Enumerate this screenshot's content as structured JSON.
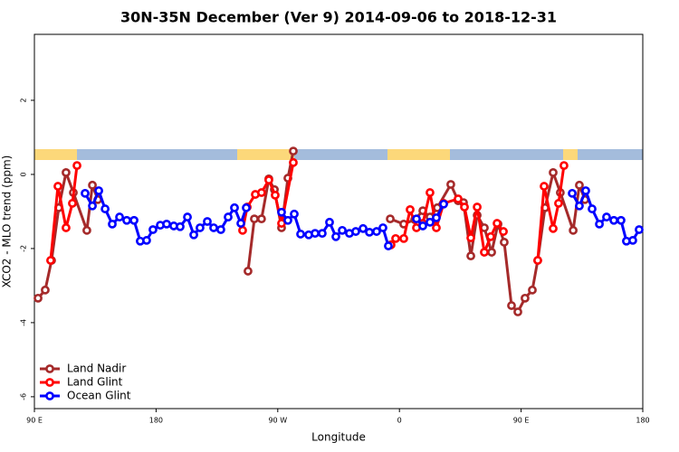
{
  "chart_data": {
    "type": "line",
    "title": "30N-35N December (Ver 9)   2014-09-06 to 2018-12-31",
    "xlabel": "Longitude",
    "ylabel": "XCO2 - MLO trend (ppm)",
    "xlim": [
      90,
      540
    ],
    "ylim": [
      -6.32,
      3.78
    ],
    "xticks": [
      {
        "value": 90,
        "label": "90 E"
      },
      180,
      {
        "value": 270,
        "label": "90 W"
      },
      {
        "value": 360,
        "label": "0"
      },
      {
        "value": 450,
        "label": "90 E"
      },
      {
        "value": 540,
        "label": "180"
      }
    ],
    "yticks": [
      -6,
      -4,
      -2,
      0,
      2
    ],
    "legend": "bottomleft",
    "series": [
      {
        "name": "Land Nadir",
        "color": "#a52a2a",
        "x": [
          92.7,
          98,
          102.7,
          108,
          113.4,
          118.8,
          128.8,
          132.9,
          136.9,
          null,
          248,
          252.7,
          258,
          263.4,
          267.5,
          272.8,
          277.5,
          281.5,
          null,
          353.2,
          363.2,
          371.3,
          377.3,
          382.6,
          388,
          398,
          403.4,
          407.4,
          412.8,
          417.5,
          422.8,
          428.2,
          432.9,
          437.5,
          442.9,
          447.6,
          452.9,
          458.3,
          462.3,
          467.7,
          473.7,
          479,
          488.5,
          493.1,
          497.2
        ],
        "values": [
          -3.34,
          -3.12,
          -2.32,
          -0.9,
          0.05,
          -0.49,
          -1.51,
          -0.29,
          -0.68,
          null,
          -2.61,
          -1.2,
          -1.2,
          -0.12,
          -0.41,
          -1.44,
          -0.1,
          0.63,
          null,
          -1.2,
          -1.34,
          -1.22,
          -0.98,
          -1.15,
          -0.9,
          -0.27,
          -0.71,
          -0.76,
          -2.2,
          -1.1,
          -1.44,
          -2.1,
          -1.34,
          -1.83,
          -3.54,
          -3.71,
          -3.34,
          -3.12,
          -2.32,
          -0.9,
          0.05,
          -0.49,
          -1.51,
          -0.29,
          -0.68
        ]
      },
      {
        "name": "Land Glint",
        "color": "#ff0000",
        "x": [
          102,
          107.4,
          113.4,
          118.1,
          121.5,
          null,
          244,
          247.4,
          253.4,
          258,
          263.4,
          268.1,
          272.8,
          281.5,
          null,
          353.8,
          357.2,
          363.2,
          367.9,
          372.6,
          377.3,
          382.6,
          387.3,
          392.7,
          403.4,
          408.1,
          412.8,
          417.5,
          422.8,
          427.5,
          432.2,
          436.9,
          null,
          462.3,
          467,
          473.7,
          477.7,
          481.7
        ],
        "values": [
          -2.32,
          -0.32,
          -1.44,
          -0.78,
          0.24,
          null,
          -1.51,
          -0.88,
          -0.54,
          -0.49,
          -0.15,
          -0.56,
          -1.32,
          0.32,
          null,
          -1.9,
          -1.73,
          -1.73,
          -0.95,
          -1.44,
          -1.32,
          -0.49,
          -1.44,
          -0.78,
          -0.66,
          -0.88,
          -1.71,
          -0.88,
          -2.1,
          -1.68,
          -1.32,
          -1.54,
          null,
          -2.32,
          -0.32,
          -1.46,
          -0.78,
          0.24
        ]
      },
      {
        "name": "Ocean Glint",
        "color": "#0000ff",
        "x": [
          127.5,
          132.9,
          137.6,
          142.3,
          147.6,
          153,
          158.3,
          163.7,
          168.3,
          173,
          177.7,
          183.1,
          187.8,
          193.1,
          197.8,
          203.2,
          207.9,
          212.5,
          217.9,
          222.6,
          227.9,
          233.3,
          238,
          242.7,
          246.7,
          null,
          272.8,
          277.5,
          282.2,
          286.9,
          292.9,
          297.6,
          302.9,
          308.3,
          313,
          317.7,
          323,
          327.7,
          333.1,
          337.8,
          343.1,
          347.8,
          351.8,
          null,
          372.6,
          377.3,
          382.6,
          387.3,
          392.7,
          null,
          487.8,
          493.1,
          497.8,
          502.5,
          507.9,
          513.2,
          518.6,
          523.9,
          527.9,
          532.6,
          537.3
        ],
        "values": [
          -0.51,
          -0.85,
          -0.44,
          -0.93,
          -1.34,
          -1.15,
          -1.24,
          -1.24,
          -1.8,
          -1.78,
          -1.49,
          -1.37,
          -1.34,
          -1.39,
          -1.41,
          -1.15,
          -1.63,
          -1.44,
          -1.27,
          -1.44,
          -1.49,
          -1.15,
          -0.9,
          -1.32,
          -0.9,
          null,
          -1.02,
          -1.24,
          -1.07,
          -1.61,
          -1.63,
          -1.59,
          -1.59,
          -1.29,
          -1.68,
          -1.51,
          -1.59,
          -1.54,
          -1.46,
          -1.56,
          -1.54,
          -1.44,
          -1.93,
          null,
          -1.2,
          -1.39,
          -1.29,
          -1.17,
          -0.8,
          null,
          -0.51,
          -0.85,
          -0.44,
          -0.93,
          -1.34,
          -1.15,
          -1.24,
          -1.24,
          -1.8,
          -1.78,
          -1.49
        ]
      }
    ]
  }
}
